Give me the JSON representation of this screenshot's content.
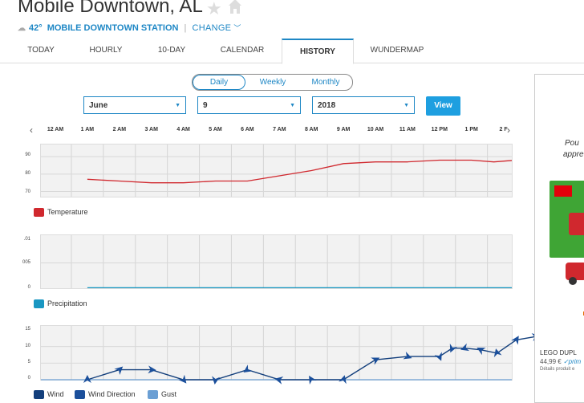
{
  "header": {
    "title": "Mobile Downtown, AL",
    "temp": "42°",
    "station": "MOBILE DOWNTOWN STATION",
    "separator": "|",
    "change_label": "CHANGE"
  },
  "tabs": [
    {
      "label": "TODAY"
    },
    {
      "label": "HOURLY"
    },
    {
      "label": "10-DAY"
    },
    {
      "label": "CALENDAR"
    },
    {
      "label": "HISTORY",
      "active": true
    },
    {
      "label": "WUNDERMAP"
    }
  ],
  "period_toggle": {
    "options": [
      "Daily",
      "Weekly",
      "Monthly"
    ],
    "selected": "Daily"
  },
  "date_selectors": {
    "month": "June",
    "day": "9",
    "year": "2018"
  },
  "view_button": "View",
  "hour_labels": [
    "12 AM",
    "1 AM",
    "2 AM",
    "3 AM",
    "4 AM",
    "5 AM",
    "6 AM",
    "7 AM",
    "8 AM",
    "9 AM",
    "10 AM",
    "11 AM",
    "12 PM",
    "1 PM",
    "2 F"
  ],
  "nav": {
    "prev": "‹",
    "next": "›"
  },
  "legends": {
    "temperature": "Temperature",
    "precipitation": "Precipitation",
    "wind": "Wind",
    "wind_direction": "Wind Direction",
    "gust": "Gust"
  },
  "colors": {
    "accent": "#1e87c5",
    "temperature": "#d0282e",
    "precipitation": "#1a97c2",
    "wind": "#133f7c",
    "wind_direction": "#1b4f9b",
    "gust": "#6b9fd4"
  },
  "ad": {
    "text_top_1": "Pou",
    "text_top_2": "appre",
    "product": "LEGO DUPL",
    "price": "44,99 €",
    "prime": "✓prim",
    "details": "Détails produit e"
  },
  "chart_data": [
    {
      "type": "line",
      "name": "temperature",
      "y_ticks": [
        "90",
        "80",
        "70"
      ],
      "ylim": [
        67,
        97
      ],
      "x": [
        1,
        2,
        3,
        4,
        5,
        6,
        7,
        8,
        9,
        10,
        11,
        12,
        13,
        13.7,
        14.4,
        15
      ],
      "series": [
        {
          "name": "Temperature",
          "values": [
            77,
            76,
            75,
            75,
            76,
            76,
            79,
            82,
            86,
            87,
            87,
            88,
            88,
            87,
            88,
            85
          ]
        }
      ]
    },
    {
      "type": "line",
      "name": "precipitation",
      "y_ticks": [
        ".01",
        "005",
        "0"
      ],
      "ylim": [
        0,
        0.01
      ],
      "x": [
        1,
        15
      ],
      "series": [
        {
          "name": "Precipitation",
          "values": [
            0,
            0
          ]
        }
      ]
    },
    {
      "type": "line",
      "name": "wind",
      "y_ticks": [
        "15",
        "10",
        "5",
        "0"
      ],
      "ylim": [
        0,
        15
      ],
      "x": [
        1,
        2,
        3,
        4,
        5,
        6,
        7,
        8,
        9,
        10,
        11,
        12,
        12.4,
        12.8,
        13.3,
        13.8,
        14.4,
        15
      ],
      "series": [
        {
          "name": "Wind",
          "values": [
            0,
            3,
            3,
            0,
            0,
            3,
            0,
            0,
            0,
            6,
            7,
            7,
            9.5,
            9.5,
            9,
            8,
            12,
            13
          ]
        }
      ]
    }
  ]
}
